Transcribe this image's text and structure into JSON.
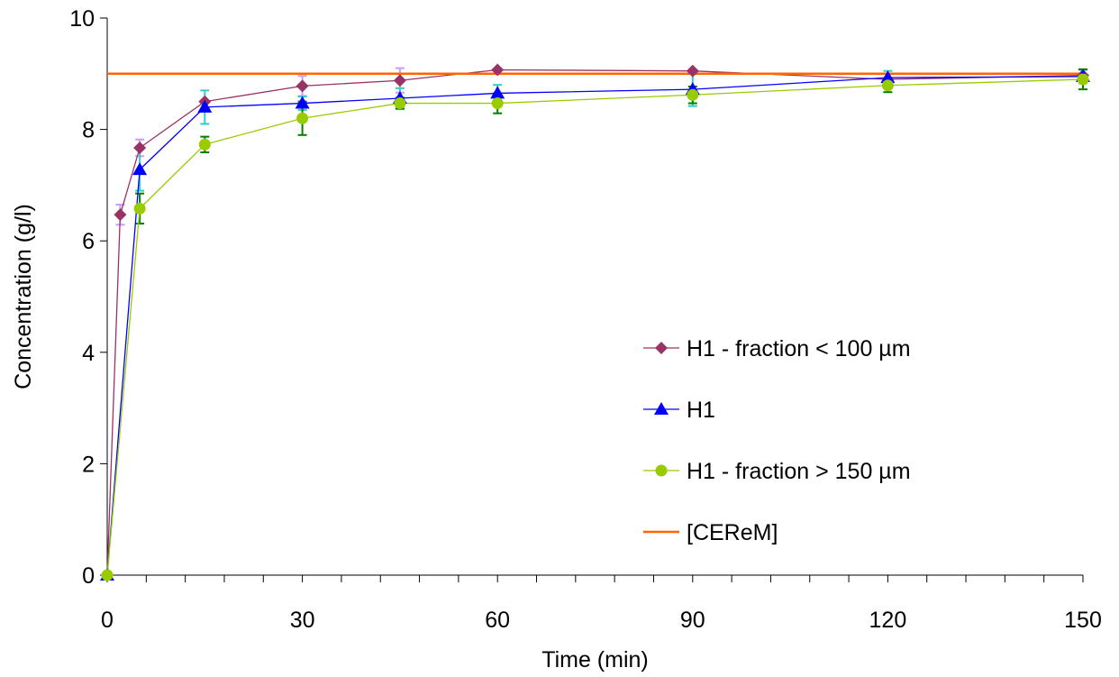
{
  "chart_data": {
    "type": "line",
    "title": "",
    "xlabel": "Time (min)",
    "ylabel": "Concentration (g/l)",
    "xlim": [
      0,
      150
    ],
    "ylim": [
      0,
      10
    ],
    "x_ticks": [
      "0",
      "30",
      "60",
      "90",
      "120",
      "150"
    ],
    "y_ticks": [
      "0",
      "2",
      "4",
      "6",
      "8",
      "10"
    ],
    "grid": false,
    "legend": "center-right, inside plot",
    "series": [
      {
        "name": "H1 - fraction < 100 µm",
        "color": "#993366",
        "error_color": "#CC99FF",
        "marker": "diamond",
        "x": [
          0,
          2,
          5,
          15,
          30,
          45,
          60,
          90,
          120,
          150
        ],
        "y": [
          0,
          6.47,
          7.67,
          8.5,
          8.78,
          8.88,
          9.07,
          9.05,
          8.9,
          8.97
        ],
        "err": [
          0,
          0.18,
          0.15,
          0,
          0.18,
          0.22,
          0,
          0,
          0,
          0
        ]
      },
      {
        "name": "H1",
        "color": "#0000FF",
        "error_color": "#33CCCC",
        "marker": "triangle",
        "x": [
          0,
          5,
          15,
          30,
          45,
          60,
          90,
          120,
          150
        ],
        "y": [
          0,
          7.28,
          8.4,
          8.47,
          8.56,
          8.65,
          8.72,
          8.93,
          8.95
        ],
        "err": [
          0,
          0.38,
          0.3,
          0.12,
          0.18,
          0.15,
          0.3,
          0.12,
          0.12
        ]
      },
      {
        "name": "H1 - fraction > 150 µm",
        "color": "#99CC00",
        "error_color": "#008000",
        "marker": "circle",
        "x": [
          0,
          5,
          15,
          30,
          45,
          60,
          90,
          120,
          150
        ],
        "y": [
          0,
          6.58,
          7.73,
          8.2,
          8.47,
          8.47,
          8.62,
          8.79,
          8.9
        ],
        "err": [
          0,
          0.27,
          0.14,
          0.3,
          0.1,
          0.18,
          0.15,
          0.12,
          0.18
        ]
      },
      {
        "name": "[CEReM]",
        "color": "#FF6600",
        "marker": "none",
        "x": [
          0,
          150
        ],
        "y": [
          9.0,
          9.0
        ],
        "err": [
          0,
          0
        ]
      }
    ]
  }
}
